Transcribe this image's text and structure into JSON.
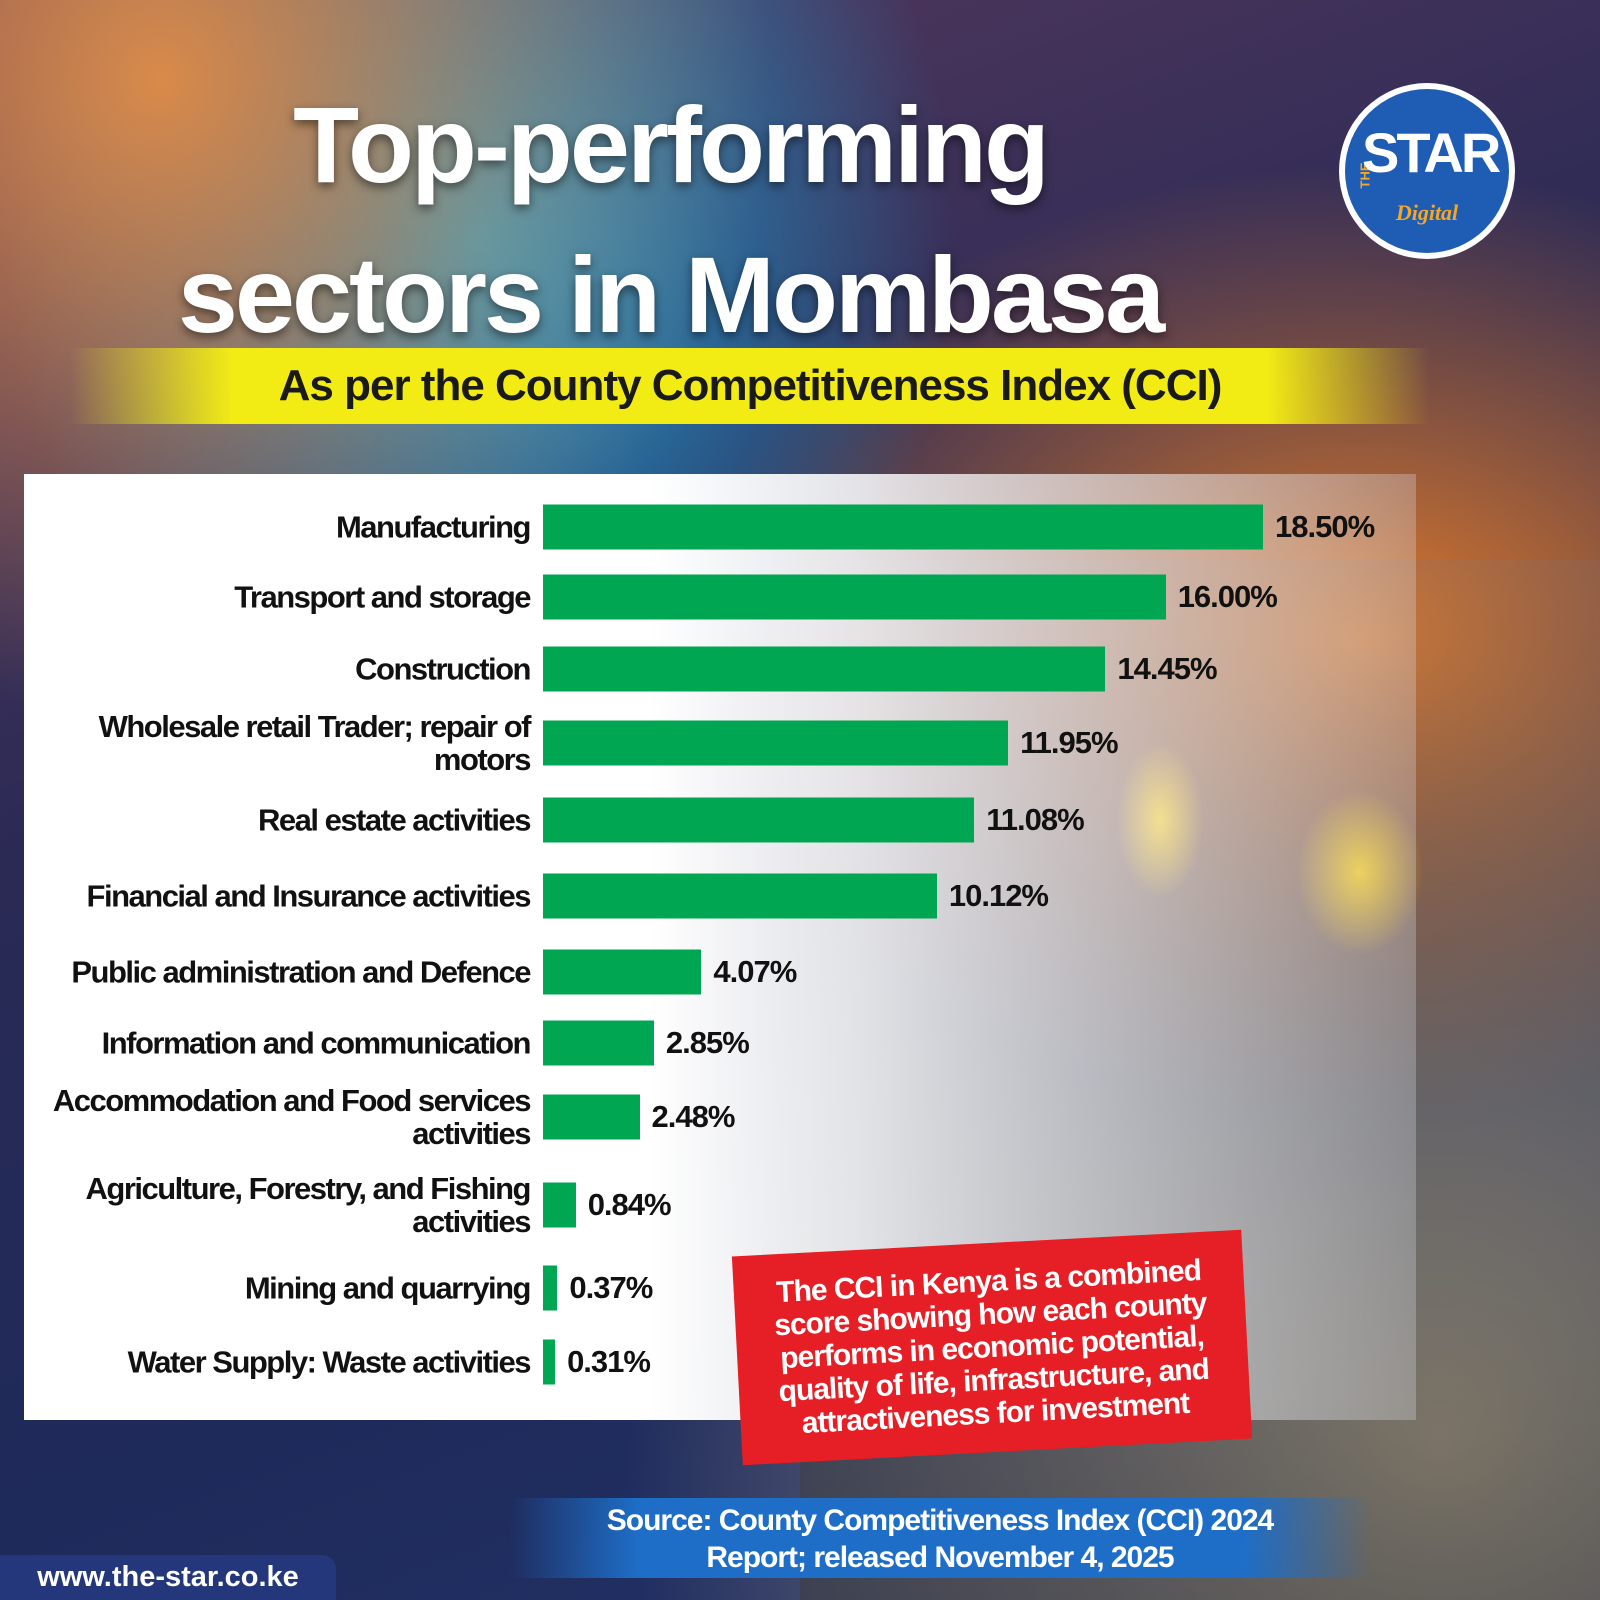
{
  "chart_data": {
    "type": "bar",
    "orientation": "horizontal",
    "title": "Top-performing sectors in Mombasa",
    "subtitle": "As per the County Competitiveness Index (CCI)",
    "categories": [
      "Manufacturing",
      "Transport and storage",
      "Construction",
      "Wholesale retail Trader; repair of motors",
      "Real estate activities",
      "Financial and Insurance activities",
      "Public administration and Defence",
      "Information and communication",
      "Accommodation and Food services activities",
      "Agriculture, Forestry, and Fishing activities",
      "Mining and quarrying",
      "Water Supply: Waste activities"
    ],
    "values": [
      18.5,
      16.0,
      14.45,
      11.95,
      11.08,
      10.12,
      4.07,
      2.85,
      2.48,
      0.84,
      0.37,
      0.31
    ],
    "value_labels": [
      "18.50%",
      "16.00%",
      "14.45%",
      "11.95%",
      "11.08%",
      "10.12%",
      "4.07%",
      "2.85%",
      "2.48%",
      "0.84%",
      "0.37%",
      "0.31%"
    ],
    "color": "#00a651",
    "annotation": "The CCI in Kenya is a combined score showing how each county performs in economic potential, quality of life, infrastructure, and attractiveness for investment",
    "source": "Source: County Competitiveness Index (CCI) 2024 Report; released November 4, 2025",
    "website": "www.the-star.co.ke",
    "logo": {
      "small": "THE",
      "main": "STAR",
      "sub": "Digital"
    }
  }
}
